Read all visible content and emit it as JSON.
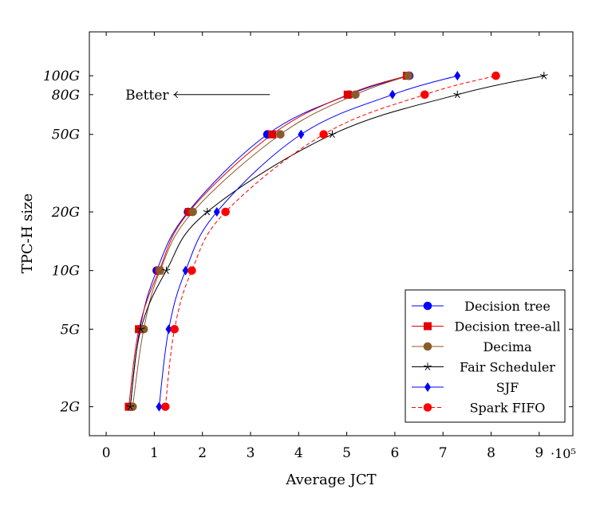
{
  "chart_data": {
    "type": "line",
    "title": "",
    "xlabel": "Average JCT",
    "ylabel": "TPC-H size",
    "x_exponent": "·10⁵",
    "xlim": [
      -0.35,
      9.7
    ],
    "yscale": "log",
    "ylim": [
      1.42,
      168
    ],
    "xticks": [
      0,
      1,
      2,
      3,
      4,
      5,
      6,
      7,
      8,
      9
    ],
    "yticks": [
      {
        "value": 2,
        "label": "2G"
      },
      {
        "value": 5,
        "label": "5G"
      },
      {
        "value": 10,
        "label": "10G"
      },
      {
        "value": 20,
        "label": "20G"
      },
      {
        "value": 50,
        "label": "50G"
      },
      {
        "value": 80,
        "label": "80G"
      },
      {
        "value": 100,
        "label": "100G"
      }
    ],
    "y_values": [
      2,
      5,
      10,
      20,
      50,
      80,
      100
    ],
    "annotation": {
      "text": "Better",
      "arrow_from": [
        3.4,
        80
      ],
      "arrow_to": [
        1.4,
        80
      ]
    },
    "legend_position": "bottom-right",
    "series": [
      {
        "name": "Decision tree",
        "color": "#0000ff",
        "marker": "circle",
        "dash": "solid",
        "x": [
          0.5,
          0.7,
          1.05,
          1.7,
          3.35,
          5.05,
          6.3
        ]
      },
      {
        "name": "Decision tree-all",
        "color": "#e00000",
        "marker": "square",
        "dash": "solid",
        "x": [
          0.47,
          0.68,
          1.1,
          1.72,
          3.45,
          5.02,
          6.25
        ]
      },
      {
        "name": "Decima",
        "color": "#8b5a2b",
        "marker": "circle",
        "dash": "solid",
        "x": [
          0.55,
          0.78,
          1.12,
          1.8,
          3.62,
          5.18,
          6.28
        ]
      },
      {
        "name": "Fair Scheduler",
        "color": "#000000",
        "marker": "star",
        "dash": "solid",
        "x": [
          0.5,
          0.72,
          1.25,
          2.1,
          4.7,
          7.3,
          9.1
        ]
      },
      {
        "name": "SJF",
        "color": "#0000ff",
        "marker": "diamond",
        "dash": "solid",
        "x": [
          1.1,
          1.3,
          1.65,
          2.3,
          4.05,
          5.95,
          7.3
        ]
      },
      {
        "name": "Spark FIFO",
        "color": "#ff0000",
        "marker": "circle",
        "dash": "dashed",
        "x": [
          1.23,
          1.42,
          1.78,
          2.48,
          4.52,
          6.62,
          8.1
        ]
      }
    ]
  }
}
